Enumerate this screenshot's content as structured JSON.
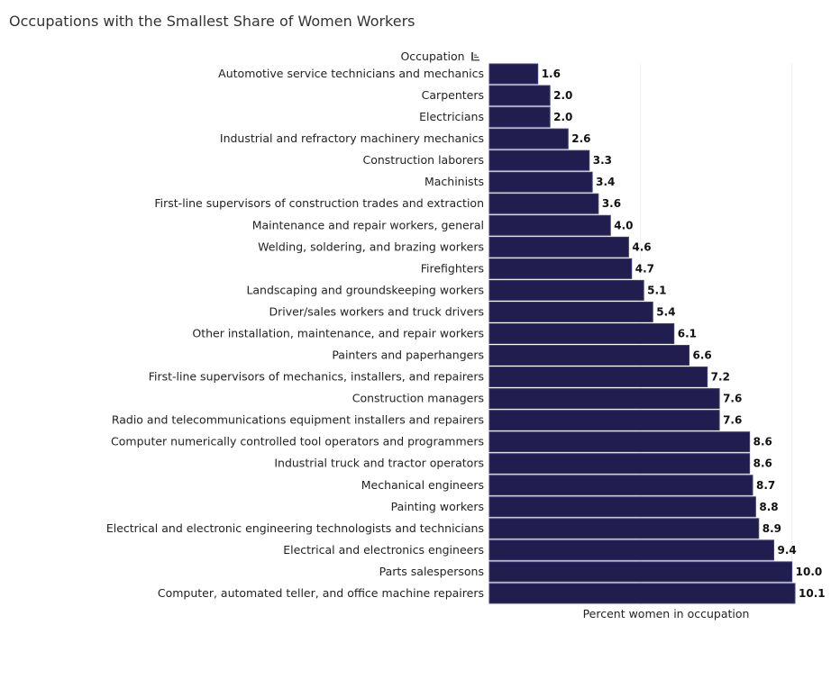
{
  "chart_data": {
    "type": "bar",
    "orientation": "horizontal",
    "title": "Occupations with the Smallest Share of Women Workers",
    "ylabel": "Occupation",
    "xlabel": "Percent women in occupation",
    "xlim": [
      0,
      10.1
    ],
    "grid": true,
    "bar_color": "#211d4e",
    "categories": [
      "Automotive service technicians and mechanics",
      "Carpenters",
      "Electricians",
      "Industrial and refractory machinery mechanics",
      "Construction laborers",
      "Machinists",
      "First-line supervisors of construction trades and extraction",
      "Maintenance and repair workers, general",
      "Welding, soldering, and brazing workers",
      "Firefighters",
      "Landscaping and groundskeeping workers",
      "Driver/sales workers and truck drivers",
      "Other installation, maintenance, and repair workers",
      "Painters and paperhangers",
      "First-line supervisors of mechanics, installers, and repairers",
      "Construction managers",
      "Radio and telecommunications equipment installers and repairers",
      "Computer numerically controlled tool operators and programmers",
      "Industrial truck and tractor operators",
      "Mechanical engineers",
      "Painting workers",
      "Electrical and electronic engineering technologists and technicians",
      "Electrical and electronics engineers",
      "Parts salespersons",
      "Computer, automated teller, and office machine repairers"
    ],
    "values": [
      1.6,
      2.0,
      2.0,
      2.6,
      3.3,
      3.4,
      3.6,
      4.0,
      4.6,
      4.7,
      5.1,
      5.4,
      6.1,
      6.6,
      7.2,
      7.6,
      7.6,
      8.6,
      8.6,
      8.7,
      8.8,
      8.9,
      9.4,
      10.0,
      10.1
    ]
  }
}
